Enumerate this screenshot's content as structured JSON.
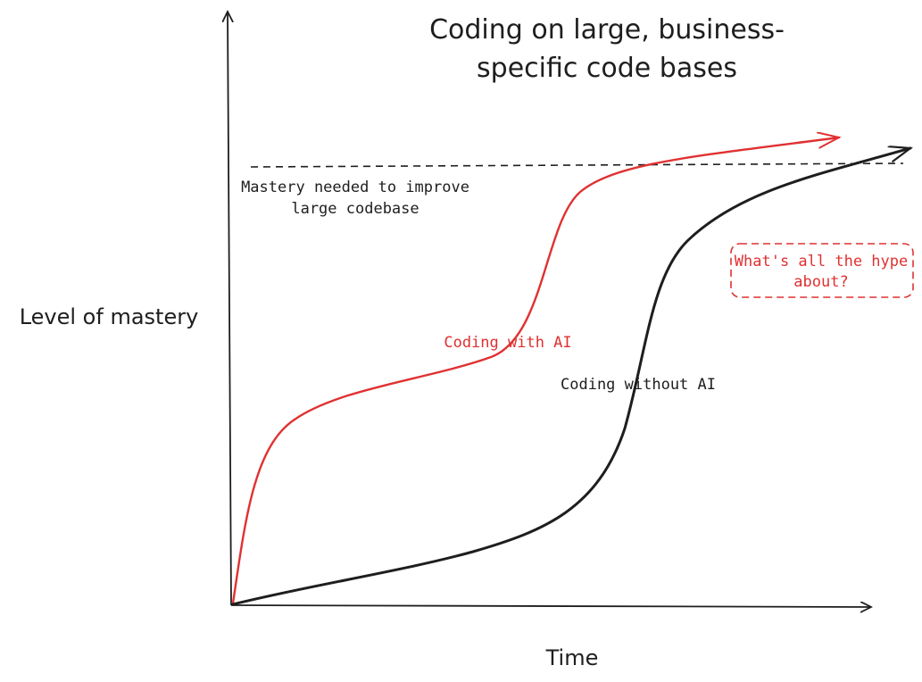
{
  "chart_data": {
    "type": "line",
    "title_lines": [
      "Coding on large, business-",
      "specific code bases"
    ],
    "xlabel": "Time",
    "ylabel": "Level of mastery",
    "threshold": {
      "label_lines": [
        "Mastery needed to improve",
        "large codebase"
      ]
    },
    "annotation": {
      "lines": [
        "What's all the hype",
        "about?"
      ]
    },
    "series": [
      {
        "name": "Coding with AI",
        "color": "#e03131"
      },
      {
        "name": "Coding without AI",
        "color": "#1e1e1e"
      }
    ]
  },
  "colors": {
    "ink": "#1e1e1e",
    "accent": "#e03131"
  }
}
